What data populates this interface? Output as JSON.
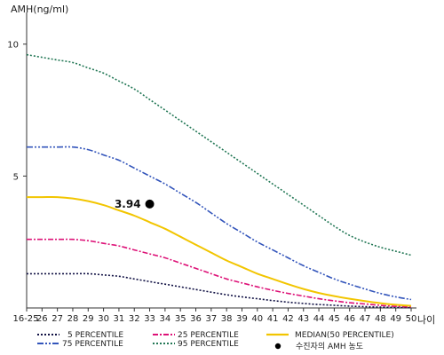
{
  "chart_data": {
    "type": "line",
    "ylabel": "AMH(ng/ml)",
    "xlabel": "나이",
    "ylim": [
      0,
      11
    ],
    "y_ticks": [
      5,
      10
    ],
    "x_categories": [
      "16-25",
      "26",
      "27",
      "28",
      "29",
      "30",
      "31",
      "32",
      "33",
      "34",
      "35",
      "36",
      "37",
      "38",
      "39",
      "40",
      "41",
      "42",
      "43",
      "44",
      "45",
      "46",
      "47",
      "48",
      "49",
      "50"
    ],
    "x_positions": [
      25,
      26,
      27,
      28,
      29,
      30,
      31,
      32,
      33,
      34,
      35,
      36,
      37,
      38,
      39,
      40,
      41,
      42,
      43,
      44,
      45,
      46,
      47,
      48,
      49,
      50
    ],
    "grid": false,
    "legend_position": "bottom",
    "series": [
      {
        "name": "5 PERCENTILE",
        "color": "#111144",
        "dash": "2,2",
        "values": [
          1.3,
          1.3,
          1.3,
          1.3,
          1.3,
          1.25,
          1.2,
          1.1,
          1.0,
          0.9,
          0.8,
          0.7,
          0.6,
          0.5,
          0.42,
          0.35,
          0.28,
          0.22,
          0.17,
          0.13,
          0.1,
          0.07,
          0.05,
          0.03,
          0.02,
          0.01
        ]
      },
      {
        "name": "25 PERCENTILE",
        "color": "#dd1177",
        "dash": "6,2,2,2",
        "values": [
          2.6,
          2.6,
          2.6,
          2.6,
          2.55,
          2.45,
          2.35,
          2.2,
          2.05,
          1.9,
          1.7,
          1.5,
          1.3,
          1.1,
          0.95,
          0.8,
          0.67,
          0.55,
          0.45,
          0.35,
          0.27,
          0.2,
          0.15,
          0.1,
          0.06,
          0.04
        ]
      },
      {
        "name": "MEDIAN(50 PERCENTILE)",
        "color": "#f2c500",
        "dash": "",
        "values": [
          4.2,
          4.2,
          4.2,
          4.15,
          4.05,
          3.9,
          3.7,
          3.5,
          3.25,
          3.0,
          2.7,
          2.4,
          2.1,
          1.8,
          1.55,
          1.3,
          1.1,
          0.9,
          0.72,
          0.57,
          0.45,
          0.35,
          0.26,
          0.18,
          0.12,
          0.08
        ]
      },
      {
        "name": "75 PERCENTILE",
        "color": "#3355bb",
        "dash": "7,2,2,2,2,2",
        "values": [
          6.1,
          6.1,
          6.1,
          6.1,
          6.0,
          5.8,
          5.6,
          5.3,
          5.0,
          4.7,
          4.35,
          4.0,
          3.6,
          3.2,
          2.85,
          2.5,
          2.2,
          1.9,
          1.6,
          1.35,
          1.1,
          0.9,
          0.72,
          0.55,
          0.42,
          0.32
        ]
      },
      {
        "name": "95 PERCENTILE",
        "color": "#227755",
        "dash": "2,2",
        "values": [
          9.6,
          9.5,
          9.4,
          9.3,
          9.1,
          8.9,
          8.6,
          8.3,
          7.9,
          7.5,
          7.1,
          6.7,
          6.3,
          5.9,
          5.5,
          5.1,
          4.7,
          4.3,
          3.9,
          3.5,
          3.1,
          2.75,
          2.5,
          2.3,
          2.15,
          2.0
        ]
      }
    ],
    "point": {
      "name": "수진자의 AMH 농도",
      "x": 33,
      "y": 3.94,
      "label": "3.94",
      "color": "#000000"
    }
  }
}
